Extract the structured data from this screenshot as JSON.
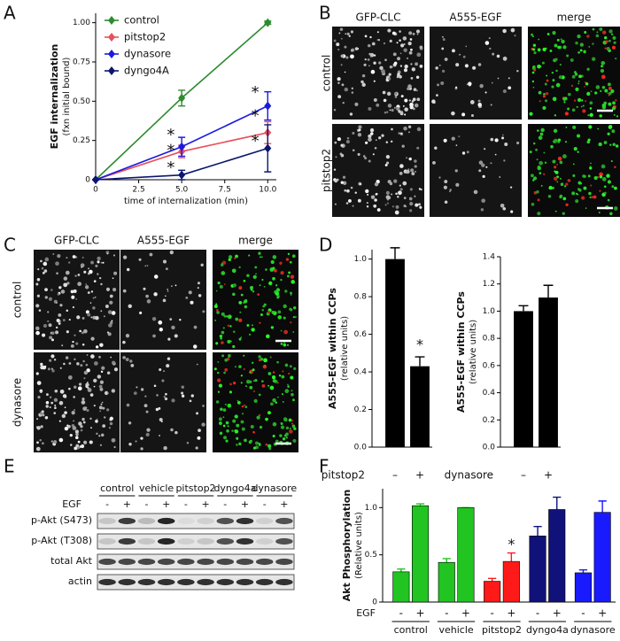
{
  "panel_labels": [
    "A",
    "B",
    "C",
    "D",
    "E",
    "F"
  ],
  "chart_data": [
    {
      "type": "line",
      "x_label": "time of internalization (min)",
      "y_label": "EGF internalization",
      "y_label_sub": "(fxn initial bound)",
      "x": [
        0,
        5,
        10
      ],
      "xlim": [
        0,
        10.5
      ],
      "xticks": [
        0,
        2.5,
        {
          "value": 5,
          "label": "5.0"
        },
        7.5,
        {
          "value": 10,
          "label": "10.0"
        }
      ],
      "ylim": [
        0,
        1.06
      ],
      "yticks": [
        0,
        0.25,
        {
          "value": 0.5,
          "label": "0.50"
        },
        0.75,
        {
          "value": 1,
          "label": "1.00"
        }
      ],
      "legend": "upper left",
      "series": [
        {
          "name": "control",
          "color": "#2e8b2e",
          "values": [
            0,
            0.52,
            1.0
          ],
          "errors": [
            0,
            0.05,
            0.01
          ]
        },
        {
          "name": "pitstop2",
          "color": "#e8505b",
          "values": [
            0,
            0.18,
            0.3
          ],
          "errors": [
            0,
            0.04,
            0.07
          ]
        },
        {
          "name": "dynasore",
          "color": "#1a1ae0",
          "values": [
            0,
            0.21,
            0.47
          ],
          "errors": [
            0,
            0.06,
            0.09
          ]
        },
        {
          "name": "dyngo4A",
          "color": "#0b1670",
          "values": [
            0,
            0.03,
            0.2
          ],
          "errors": [
            0,
            0.03,
            0.15
          ]
        }
      ],
      "annotations": [
        "*",
        "*",
        "*",
        "*",
        "*",
        "*"
      ]
    },
    {
      "type": "bar",
      "y_label": "A555-EGF within CCPs",
      "y_label_sub": "(relative units)",
      "x_label": "pitstop2",
      "categories": [
        "–",
        "+"
      ],
      "values": [
        1.0,
        0.43
      ],
      "errors": [
        0.06,
        0.05
      ],
      "color": "#000000",
      "ylim": [
        0,
        1.05
      ],
      "yticks": [
        {
          "value": 0,
          "label": "0.0"
        },
        0.2,
        0.4,
        0.6,
        0.8,
        {
          "value": 1,
          "label": "1.0"
        }
      ],
      "annotations": [
        "*"
      ]
    },
    {
      "type": "bar",
      "y_label": "A555-EGF within CCPs",
      "y_label_sub": "(relative units)",
      "x_label": "dynasore",
      "categories": [
        "–",
        "+"
      ],
      "values": [
        1.0,
        1.1
      ],
      "errors": [
        0.04,
        0.09
      ],
      "color": "#000000",
      "ylim": [
        0,
        1.4
      ],
      "yticks": [
        {
          "value": 0,
          "label": "0.0"
        },
        0.2,
        0.4,
        0.6,
        0.8,
        {
          "value": 1,
          "label": "1.0"
        },
        1.2,
        1.4
      ]
    },
    {
      "type": "bar",
      "y_label": "Akt Phosphorylation",
      "y_label_sub": "(Relative units)",
      "x_label": "EGF",
      "categories": [
        "-",
        "+",
        "-",
        "+",
        "-",
        "+",
        "-",
        "+",
        "-",
        "+"
      ],
      "groups": [
        "control",
        "vehicle",
        "pitstop2",
        "dyngo4a",
        "dynasore"
      ],
      "values": [
        0.32,
        1.02,
        0.42,
        1.0,
        0.22,
        0.43,
        0.7,
        0.98,
        0.31,
        0.95
      ],
      "errors": [
        0.03,
        0.02,
        0.04,
        0,
        0.03,
        0.09,
        0.1,
        0.13,
        0.03,
        0.12
      ],
      "colors": [
        "#22c422",
        "#22c422",
        "#22c422",
        "#22c422",
        "#ff1a1a",
        "#ff1a1a",
        "#10127a",
        "#10127a",
        "#1a1aff",
        "#1a1aff"
      ],
      "ylim": [
        0,
        1.2
      ],
      "yticks": [
        0,
        0.5,
        {
          "value": 1,
          "label": "1.0"
        }
      ],
      "annotations": [
        "*"
      ]
    }
  ],
  "images": {
    "B": {
      "columns": [
        "GFP-CLC",
        "A555-EGF",
        "merge"
      ],
      "rows": [
        "control",
        "pitstop2"
      ]
    },
    "C": {
      "columns": [
        "GFP-CLC",
        "A555-EGF",
        "merge"
      ],
      "rows": [
        "control",
        "dynasore"
      ]
    }
  },
  "blot": {
    "groups": [
      "control",
      "vehicle",
      "pitstop2",
      "dyngo4a",
      "dynasore"
    ],
    "treatment_label": "EGF",
    "lanes": [
      "-",
      "+",
      "-",
      "+",
      "-",
      "+",
      "-",
      "+",
      "-",
      "+"
    ],
    "rows": [
      "p-Akt (S473)",
      "p-Akt (T308)",
      "total Akt",
      "actin"
    ]
  }
}
